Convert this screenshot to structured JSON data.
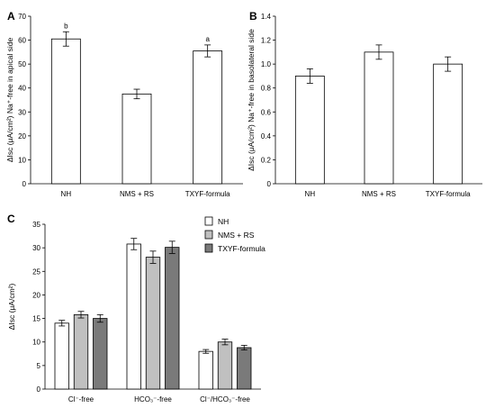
{
  "chart_data": [
    {
      "panel": "A",
      "type": "bar",
      "categories": [
        "NH",
        "NMS + RS",
        "TXYF-formula"
      ],
      "values": [
        60.5,
        37.5,
        55.5
      ],
      "errors": [
        3.0,
        2.0,
        2.5
      ],
      "annotations": [
        "b",
        "",
        "a"
      ],
      "ylabel": "ΔIsc (μA/cm²) Na⁺-free in apical side",
      "ylim": [
        0,
        70
      ],
      "yticks": [
        0,
        10,
        20,
        30,
        40,
        50,
        60,
        70
      ],
      "yticklabels": [
        "0",
        "10",
        "20",
        "30",
        "40",
        "50",
        "60",
        "70"
      ],
      "color": "#ffffff"
    },
    {
      "panel": "B",
      "type": "bar",
      "categories": [
        "NH",
        "NMS + RS",
        "TXYF-formula"
      ],
      "values": [
        0.9,
        1.1,
        1.0
      ],
      "errors": [
        0.06,
        0.06,
        0.06
      ],
      "annotations": [
        "",
        "",
        ""
      ],
      "ylabel": "ΔIsc (μA/cm²) Na⁺-free in basolateral side",
      "ylim": [
        0,
        1.4
      ],
      "yticks": [
        0,
        0.2,
        0.4,
        0.6,
        0.8,
        1.0,
        1.2,
        1.4
      ],
      "yticklabels": [
        "0",
        "0.2",
        "0.4",
        "0.6",
        "0.8",
        "1.0",
        "1.2",
        "1.4"
      ],
      "color": "#ffffff"
    },
    {
      "panel": "C",
      "type": "bar",
      "categories": [
        "Cl⁻-free",
        "HCO₃⁻-free",
        "Cl⁻/HCO₃⁻-free"
      ],
      "series": [
        {
          "name": "NH",
          "values": [
            14.0,
            30.8,
            8.0
          ],
          "errors": [
            0.6,
            1.2,
            0.4
          ],
          "color": "#ffffff"
        },
        {
          "name": "NMS + RS",
          "values": [
            15.8,
            28.0,
            10.0
          ],
          "errors": [
            0.7,
            1.3,
            0.6
          ],
          "color": "#c0c0c0"
        },
        {
          "name": "TXYF-formula",
          "values": [
            15.0,
            30.1,
            8.8
          ],
          "errors": [
            0.8,
            1.3,
            0.5
          ],
          "color": "#7a7a7a"
        }
      ],
      "ylabel": "ΔIsc (μA/cm²)",
      "ylim": [
        0,
        35
      ],
      "yticks": [
        0,
        5,
        10,
        15,
        20,
        25,
        30,
        35
      ],
      "yticklabels": [
        "0",
        "5",
        "10",
        "15",
        "20",
        "25",
        "30",
        "35"
      ],
      "legend_position": "top-right"
    }
  ]
}
